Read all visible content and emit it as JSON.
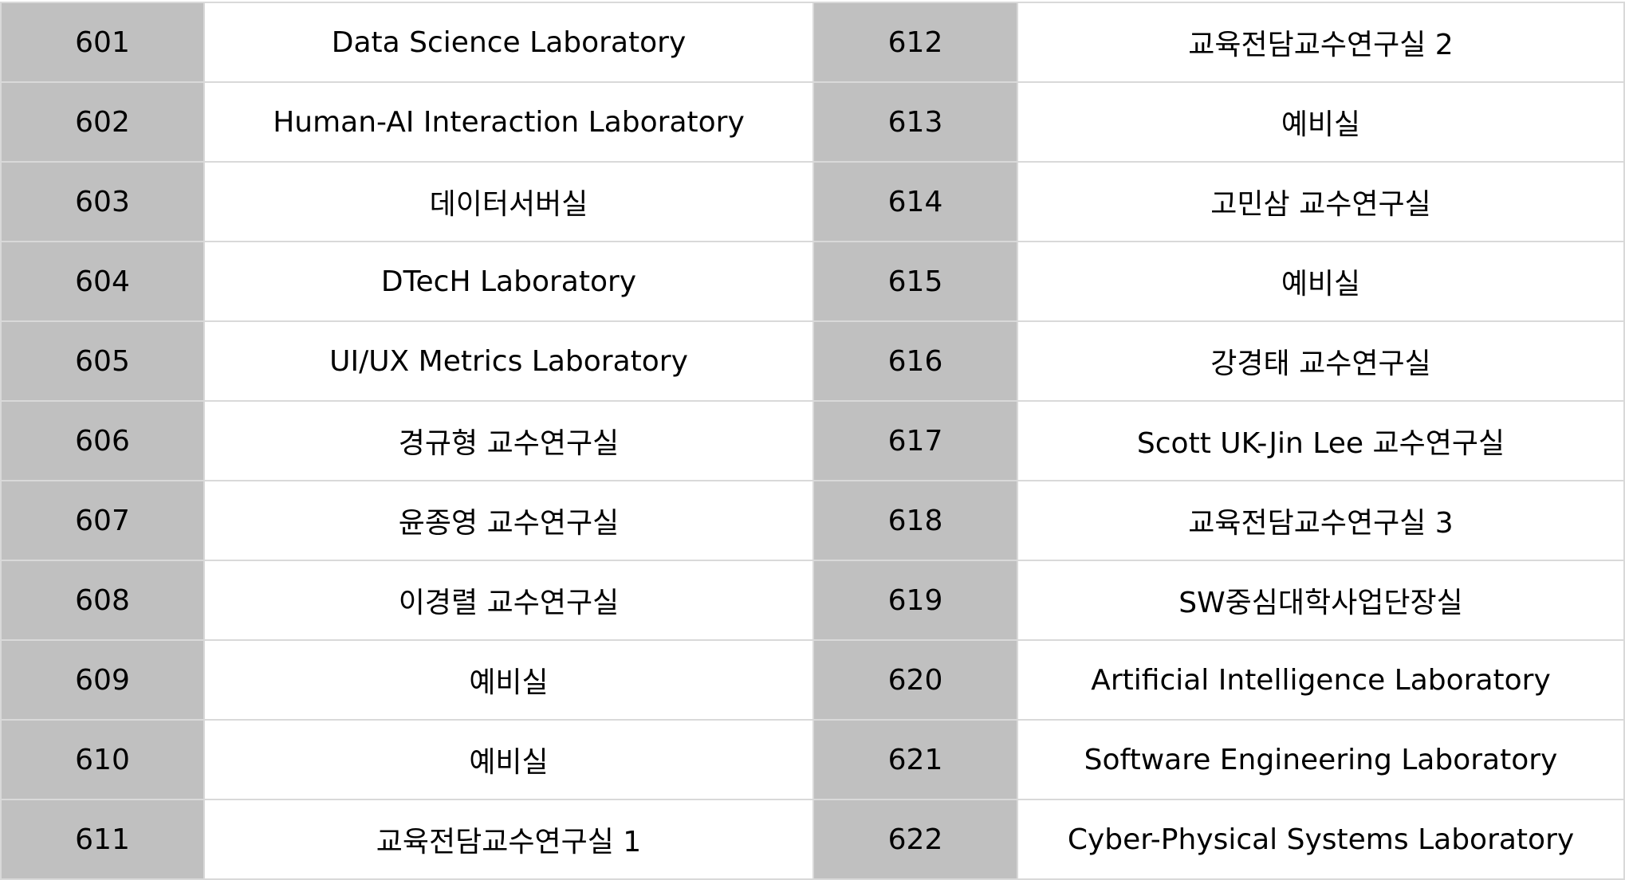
{
  "rows": [
    {
      "left": {
        "number": "601",
        "name": "Data Science Laboratory"
      },
      "right": {
        "number": "612",
        "name": "교육전담교수연구실 2"
      }
    },
    {
      "left": {
        "number": "602",
        "name": "Human-AI Interaction Laboratory"
      },
      "right": {
        "number": "613",
        "name": "예비실"
      }
    },
    {
      "left": {
        "number": "603",
        "name": "데이터서버실"
      },
      "right": {
        "number": "614",
        "name": "고민삼 교수연구실"
      }
    },
    {
      "left": {
        "number": "604",
        "name": "DTecH Laboratory"
      },
      "right": {
        "number": "615",
        "name": "예비실"
      }
    },
    {
      "left": {
        "number": "605",
        "name": "UI/UX Metrics Laboratory"
      },
      "right": {
        "number": "616",
        "name": "강경태 교수연구실"
      }
    },
    {
      "left": {
        "number": "606",
        "name": "경규형 교수연구실"
      },
      "right": {
        "number": "617",
        "name": "Scott UK-Jin Lee 교수연구실"
      }
    },
    {
      "left": {
        "number": "607",
        "name": "윤종영 교수연구실"
      },
      "right": {
        "number": "618",
        "name": "교육전담교수연구실 3"
      }
    },
    {
      "left": {
        "number": "608",
        "name": "이경렬 교수연구실"
      },
      "right": {
        "number": "619",
        "name": "SW중심대학사업단장실"
      }
    },
    {
      "left": {
        "number": "609",
        "name": "예비실"
      },
      "right": {
        "number": "620",
        "name": "Artificial Intelligence Laboratory"
      }
    },
    {
      "left": {
        "number": "610",
        "name": "예비실"
      },
      "right": {
        "number": "621",
        "name": "Software Engineering Laboratory"
      }
    },
    {
      "left": {
        "number": "611",
        "name": "교육전담교수연구실 1"
      },
      "right": {
        "number": "622",
        "name": "Cyber-Physical Systems Laboratory"
      }
    }
  ]
}
